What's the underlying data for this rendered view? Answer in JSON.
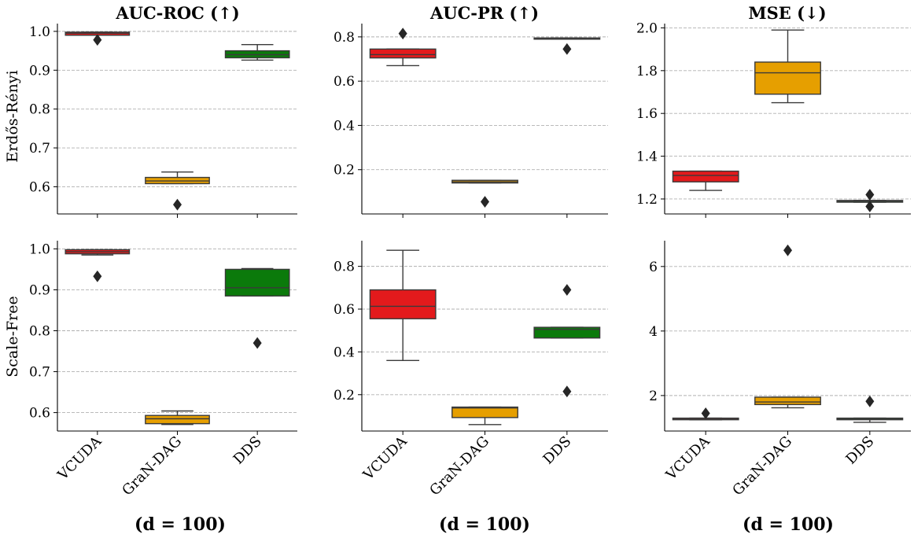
{
  "figure": {
    "columns": [
      "AUC-ROC (↑)",
      "AUC-PR (↑)",
      "MSE (↓)"
    ],
    "rows": [
      "Erdős-Rényi",
      "Scale-Free"
    ],
    "bottom_labels": [
      "(d = 100)",
      "(d = 100)",
      "(d = 100)"
    ]
  },
  "colors": {
    "VCUDA": "#e31a1c",
    "GraN-DAG": "#e69f00",
    "DDS": "#0b7a0b",
    "grid": "#b0b0b0",
    "outlier": "#262626"
  },
  "chart_data": [
    {
      "type": "box",
      "title": "AUC-ROC (↑)",
      "ylabel": "Erdős-Rényi",
      "xlabel": "",
      "categories": [
        "VCUDA",
        "GraN-DAG",
        "DDS"
      ],
      "ylim": [
        0.53,
        1.02
      ],
      "yticks": [
        1.0,
        0.9,
        0.8,
        0.7,
        0.6
      ],
      "ytick_labels": [
        "1.0",
        "0.9",
        "0.8",
        "0.7",
        "0.6"
      ],
      "boxes": [
        {
          "name": "VCUDA",
          "whislo": 0.99,
          "q1": 0.99,
          "med": 0.995,
          "q3": 0.998,
          "whishi": 0.998,
          "fliers": [
            0.978
          ]
        },
        {
          "name": "GraN-DAG",
          "whislo": 0.608,
          "q1": 0.608,
          "med": 0.615,
          "q3": 0.624,
          "whishi": 0.638,
          "fliers": [
            0.554
          ]
        },
        {
          "name": "DDS",
          "whislo": 0.926,
          "q1": 0.932,
          "med": 0.94,
          "q3": 0.95,
          "whishi": 0.966,
          "fliers": []
        }
      ]
    },
    {
      "type": "box",
      "title": "AUC-PR (↑)",
      "ylabel": "",
      "xlabel": "",
      "categories": [
        "VCUDA",
        "GraN-DAG",
        "DDS"
      ],
      "ylim": [
        0.0,
        0.86
      ],
      "yticks": [
        0.8,
        0.6,
        0.4,
        0.2
      ],
      "ytick_labels": [
        "0.8",
        "0.6",
        "0.4",
        "0.2"
      ],
      "boxes": [
        {
          "name": "VCUDA",
          "whislo": 0.67,
          "q1": 0.705,
          "med": 0.72,
          "q3": 0.745,
          "whishi": 0.745,
          "fliers": [
            0.815
          ]
        },
        {
          "name": "GraN-DAG",
          "whislo": 0.14,
          "q1": 0.14,
          "med": 0.145,
          "q3": 0.152,
          "whishi": 0.152,
          "fliers": [
            0.055
          ]
        },
        {
          "name": "DDS",
          "whislo": 0.79,
          "q1": 0.79,
          "med": 0.792,
          "q3": 0.795,
          "whishi": 0.795,
          "fliers": [
            0.745
          ]
        }
      ]
    },
    {
      "type": "box",
      "title": "MSE (↓)",
      "ylabel": "",
      "xlabel": "",
      "categories": [
        "VCUDA",
        "GraN-DAG",
        "DDS"
      ],
      "ylim": [
        1.13,
        2.02
      ],
      "yticks": [
        2.0,
        1.8,
        1.6,
        1.4,
        1.2
      ],
      "ytick_labels": [
        "2.0",
        "1.8",
        "1.6",
        "1.4",
        "1.2"
      ],
      "boxes": [
        {
          "name": "VCUDA",
          "whislo": 1.24,
          "q1": 1.28,
          "med": 1.31,
          "q3": 1.33,
          "whishi": 1.33,
          "fliers": []
        },
        {
          "name": "GraN-DAG",
          "whislo": 1.65,
          "q1": 1.69,
          "med": 1.79,
          "q3": 1.84,
          "whishi": 1.99,
          "fliers": []
        },
        {
          "name": "DDS",
          "whislo": 1.185,
          "q1": 1.185,
          "med": 1.19,
          "q3": 1.193,
          "whishi": 1.193,
          "fliers": [
            1.22,
            1.165
          ]
        }
      ]
    },
    {
      "type": "box",
      "title": "",
      "ylabel": "Scale-Free",
      "xlabel": "(d = 100)",
      "categories": [
        "VCUDA",
        "GraN-DAG",
        "DDS"
      ],
      "ylim": [
        0.555,
        1.02
      ],
      "yticks": [
        1.0,
        0.9,
        0.8,
        0.7,
        0.6
      ],
      "ytick_labels": [
        "1.0",
        "0.9",
        "0.8",
        "0.7",
        "0.6"
      ],
      "boxes": [
        {
          "name": "VCUDA",
          "whislo": 0.985,
          "q1": 0.988,
          "med": 0.993,
          "q3": 0.998,
          "whishi": 0.998,
          "fliers": [
            0.933
          ]
        },
        {
          "name": "GraN-DAG",
          "whislo": 0.571,
          "q1": 0.573,
          "med": 0.585,
          "q3": 0.593,
          "whishi": 0.604,
          "fliers": []
        },
        {
          "name": "DDS",
          "whislo": 0.885,
          "q1": 0.885,
          "med": 0.905,
          "q3": 0.95,
          "whishi": 0.952,
          "fliers": [
            0.77
          ]
        }
      ]
    },
    {
      "type": "box",
      "title": "",
      "ylabel": "",
      "xlabel": "(d = 100)",
      "categories": [
        "VCUDA",
        "GraN-DAG",
        "DDS"
      ],
      "ylim": [
        0.03,
        0.92
      ],
      "yticks": [
        0.8,
        0.6,
        0.4,
        0.2
      ],
      "ytick_labels": [
        "0.8",
        "0.6",
        "0.4",
        "0.2"
      ],
      "boxes": [
        {
          "name": "VCUDA",
          "whislo": 0.36,
          "q1": 0.555,
          "med": 0.613,
          "q3": 0.69,
          "whishi": 0.875,
          "fliers": []
        },
        {
          "name": "GraN-DAG",
          "whislo": 0.06,
          "q1": 0.093,
          "med": 0.138,
          "q3": 0.142,
          "whishi": 0.142,
          "fliers": []
        },
        {
          "name": "DDS",
          "whislo": 0.465,
          "q1": 0.465,
          "med": 0.505,
          "q3": 0.515,
          "whishi": 0.515,
          "fliers": [
            0.69,
            0.215
          ]
        }
      ]
    },
    {
      "type": "box",
      "title": "",
      "ylabel": "",
      "xlabel": "(d = 100)",
      "categories": [
        "VCUDA",
        "GraN-DAG",
        "DDS"
      ],
      "ylim": [
        0.9,
        6.8
      ],
      "yticks": [
        6,
        4,
        2
      ],
      "ytick_labels": [
        "6",
        "4",
        "2"
      ],
      "boxes": [
        {
          "name": "VCUDA",
          "whislo": 1.25,
          "q1": 1.25,
          "med": 1.27,
          "q3": 1.3,
          "whishi": 1.3,
          "fliers": [
            1.45
          ]
        },
        {
          "name": "GraN-DAG",
          "whislo": 1.62,
          "q1": 1.72,
          "med": 1.8,
          "q3": 1.95,
          "whishi": 1.95,
          "fliers": [
            6.5
          ]
        },
        {
          "name": "DDS",
          "whislo": 1.17,
          "q1": 1.25,
          "med": 1.27,
          "q3": 1.3,
          "whishi": 1.3,
          "fliers": [
            1.82
          ]
        }
      ]
    }
  ]
}
